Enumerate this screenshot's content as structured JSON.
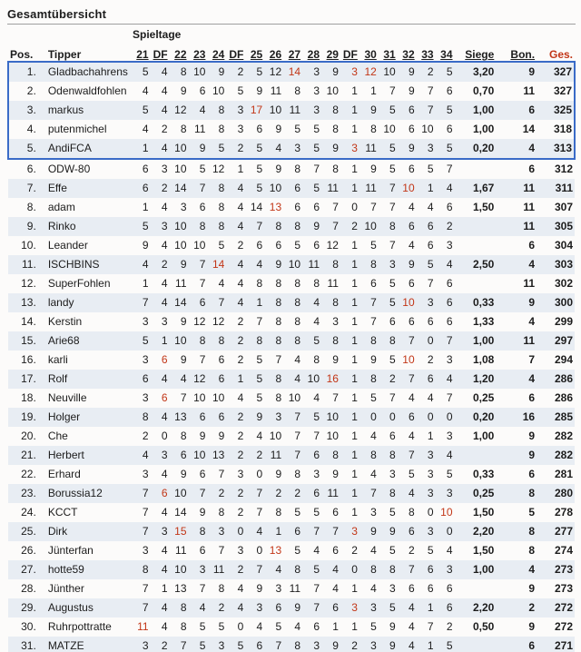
{
  "page": {
    "title": "Gesamtübersicht"
  },
  "colors": {
    "highlight_red": "#c23617",
    "top5_box_blue": "#3a6bc7",
    "row_stripe": "#e8edf3",
    "rule_gray": "#9f9f9f"
  },
  "table": {
    "group_label": "Spieltage",
    "highlight_rows": 5,
    "columns": {
      "pos": "Pos.",
      "tipper": "Tipper",
      "days": [
        "21",
        "DF",
        "22",
        "23",
        "24",
        "DF",
        "25",
        "26",
        "27",
        "28",
        "29",
        "DF",
        "30",
        "31",
        "32",
        "33",
        "34"
      ],
      "siege": "Siege",
      "bon": "Bon.",
      "ges": "Ges."
    },
    "rows": [
      {
        "pos": "1.",
        "name": "Gladbachahrens",
        "values": [
          5,
          4,
          8,
          10,
          9,
          2,
          5,
          12,
          14,
          3,
          9,
          3,
          12,
          10,
          9,
          2,
          5
        ],
        "red": [
          8,
          11,
          12
        ],
        "siege": "3,20",
        "bon": "9",
        "ges": "327"
      },
      {
        "pos": "2.",
        "name": "Odenwaldfohlen",
        "values": [
          4,
          4,
          9,
          6,
          10,
          5,
          9,
          11,
          8,
          3,
          10,
          1,
          1,
          7,
          9,
          7,
          6
        ],
        "red": [],
        "siege": "0,70",
        "bon": "11",
        "ges": "327"
      },
      {
        "pos": "3.",
        "name": "markus",
        "values": [
          5,
          4,
          12,
          4,
          8,
          3,
          17,
          10,
          11,
          3,
          8,
          1,
          9,
          5,
          6,
          7,
          5
        ],
        "red": [
          6
        ],
        "siege": "1,00",
        "bon": "6",
        "ges": "325"
      },
      {
        "pos": "4.",
        "name": "putenmichel",
        "values": [
          4,
          2,
          8,
          11,
          8,
          3,
          6,
          9,
          5,
          5,
          8,
          1,
          8,
          10,
          6,
          10,
          6
        ],
        "red": [],
        "siege": "1,00",
        "bon": "14",
        "ges": "318"
      },
      {
        "pos": "5.",
        "name": "AndiFCA",
        "values": [
          1,
          4,
          10,
          9,
          5,
          2,
          5,
          4,
          3,
          5,
          9,
          3,
          11,
          5,
          9,
          3,
          5
        ],
        "red": [
          11
        ],
        "siege": "0,20",
        "bon": "4",
        "ges": "313"
      },
      {
        "pos": "6.",
        "name": "ODW-80",
        "values": [
          6,
          3,
          10,
          5,
          12,
          1,
          5,
          9,
          8,
          7,
          8,
          1,
          9,
          5,
          6,
          5,
          7
        ],
        "red": [],
        "siege": "",
        "bon": "6",
        "ges": "312"
      },
      {
        "pos": "7.",
        "name": "Effe",
        "values": [
          6,
          2,
          14,
          7,
          8,
          4,
          5,
          10,
          6,
          5,
          11,
          1,
          11,
          7,
          10,
          1,
          4
        ],
        "red": [
          14
        ],
        "siege": "1,67",
        "bon": "11",
        "ges": "311"
      },
      {
        "pos": "8.",
        "name": "adam",
        "values": [
          1,
          4,
          3,
          6,
          8,
          4,
          14,
          13,
          6,
          6,
          7,
          0,
          7,
          7,
          4,
          4,
          6
        ],
        "red": [
          7
        ],
        "siege": "1,50",
        "bon": "11",
        "ges": "307"
      },
      {
        "pos": "9.",
        "name": "Rinko",
        "values": [
          5,
          3,
          10,
          8,
          8,
          4,
          7,
          8,
          8,
          9,
          7,
          2,
          10,
          8,
          6,
          6,
          2
        ],
        "red": [],
        "siege": "",
        "bon": "11",
        "ges": "305"
      },
      {
        "pos": "10.",
        "name": "Leander",
        "values": [
          9,
          4,
          10,
          10,
          5,
          2,
          6,
          6,
          5,
          6,
          12,
          1,
          5,
          7,
          4,
          6,
          3
        ],
        "red": [],
        "siege": "",
        "bon": "6",
        "ges": "304"
      },
      {
        "pos": "11.",
        "name": "ISCHBINS",
        "values": [
          4,
          2,
          9,
          7,
          14,
          4,
          4,
          9,
          10,
          11,
          8,
          1,
          8,
          3,
          9,
          5,
          4
        ],
        "red": [
          4
        ],
        "siege": "2,50",
        "bon": "4",
        "ges": "303"
      },
      {
        "pos": "12.",
        "name": "SuperFohlen",
        "values": [
          1,
          4,
          11,
          7,
          4,
          4,
          8,
          8,
          8,
          8,
          11,
          1,
          6,
          5,
          6,
          7,
          6
        ],
        "red": [],
        "siege": "",
        "bon": "11",
        "ges": "302"
      },
      {
        "pos": "13.",
        "name": "landy",
        "values": [
          7,
          4,
          14,
          6,
          7,
          4,
          1,
          8,
          8,
          4,
          8,
          1,
          7,
          5,
          10,
          3,
          6
        ],
        "red": [
          14
        ],
        "siege": "0,33",
        "bon": "9",
        "ges": "300"
      },
      {
        "pos": "14.",
        "name": "Kerstin",
        "values": [
          3,
          3,
          9,
          12,
          12,
          2,
          7,
          8,
          8,
          4,
          3,
          1,
          7,
          6,
          6,
          6,
          6
        ],
        "red": [],
        "siege": "1,33",
        "bon": "4",
        "ges": "299"
      },
      {
        "pos": "15.",
        "name": "Arie68",
        "values": [
          5,
          1,
          10,
          8,
          8,
          2,
          8,
          8,
          8,
          5,
          8,
          1,
          8,
          8,
          7,
          0,
          7
        ],
        "red": [],
        "siege": "1,00",
        "bon": "11",
        "ges": "297"
      },
      {
        "pos": "16.",
        "name": "karli",
        "values": [
          3,
          6,
          9,
          7,
          6,
          2,
          5,
          7,
          4,
          8,
          9,
          1,
          9,
          5,
          10,
          2,
          3
        ],
        "red": [
          1,
          14
        ],
        "siege": "1,08",
        "bon": "7",
        "ges": "294"
      },
      {
        "pos": "17.",
        "name": "Rolf",
        "values": [
          6,
          4,
          4,
          12,
          6,
          1,
          5,
          8,
          4,
          10,
          16,
          1,
          8,
          2,
          7,
          6,
          4
        ],
        "red": [
          10
        ],
        "siege": "1,20",
        "bon": "4",
        "ges": "286"
      },
      {
        "pos": "18.",
        "name": "Neuville",
        "values": [
          3,
          6,
          7,
          10,
          10,
          4,
          5,
          8,
          10,
          4,
          7,
          1,
          5,
          7,
          4,
          4,
          7
        ],
        "red": [
          1
        ],
        "siege": "0,25",
        "bon": "6",
        "ges": "286"
      },
      {
        "pos": "19.",
        "name": "Holger",
        "values": [
          8,
          4,
          13,
          6,
          6,
          2,
          9,
          3,
          7,
          5,
          10,
          1,
          0,
          0,
          6,
          0,
          0
        ],
        "red": [],
        "siege": "0,20",
        "bon": "16",
        "ges": "285"
      },
      {
        "pos": "20.",
        "name": "Che",
        "values": [
          2,
          0,
          8,
          9,
          9,
          2,
          4,
          10,
          7,
          7,
          10,
          1,
          4,
          6,
          4,
          1,
          3
        ],
        "red": [],
        "siege": "1,00",
        "bon": "9",
        "ges": "282"
      },
      {
        "pos": "21.",
        "name": "Herbert",
        "values": [
          4,
          3,
          6,
          10,
          13,
          2,
          2,
          11,
          7,
          6,
          8,
          1,
          8,
          8,
          7,
          3,
          4
        ],
        "red": [],
        "siege": "",
        "bon": "9",
        "ges": "282"
      },
      {
        "pos": "22.",
        "name": "Erhard",
        "values": [
          3,
          4,
          9,
          6,
          7,
          3,
          0,
          9,
          8,
          3,
          9,
          1,
          4,
          3,
          5,
          3,
          5
        ],
        "red": [],
        "siege": "0,33",
        "bon": "6",
        "ges": "281"
      },
      {
        "pos": "23.",
        "name": "Borussia12",
        "values": [
          7,
          6,
          10,
          7,
          2,
          2,
          7,
          2,
          2,
          6,
          11,
          1,
          7,
          8,
          4,
          3,
          3
        ],
        "red": [
          1
        ],
        "siege": "0,25",
        "bon": "8",
        "ges": "280"
      },
      {
        "pos": "24.",
        "name": "KCCT",
        "values": [
          7,
          4,
          14,
          9,
          8,
          2,
          7,
          8,
          5,
          5,
          6,
          1,
          3,
          5,
          8,
          0,
          10
        ],
        "red": [
          16
        ],
        "siege": "1,50",
        "bon": "5",
        "ges": "278"
      },
      {
        "pos": "25.",
        "name": "Dirk",
        "values": [
          7,
          3,
          15,
          8,
          3,
          0,
          4,
          1,
          6,
          7,
          7,
          3,
          9,
          9,
          6,
          3,
          0
        ],
        "red": [
          2,
          11
        ],
        "siege": "2,20",
        "bon": "8",
        "ges": "277"
      },
      {
        "pos": "26.",
        "name": "Jünterfan",
        "values": [
          3,
          4,
          11,
          6,
          7,
          3,
          0,
          13,
          5,
          4,
          6,
          2,
          4,
          5,
          2,
          5,
          4
        ],
        "red": [
          7
        ],
        "siege": "1,50",
        "bon": "8",
        "ges": "274"
      },
      {
        "pos": "27.",
        "name": "hotte59",
        "values": [
          8,
          4,
          10,
          3,
          11,
          2,
          7,
          4,
          8,
          5,
          4,
          0,
          8,
          8,
          7,
          6,
          3
        ],
        "red": [],
        "siege": "1,00",
        "bon": "4",
        "ges": "273"
      },
      {
        "pos": "28.",
        "name": "Jünther",
        "values": [
          7,
          1,
          13,
          7,
          8,
          4,
          9,
          3,
          11,
          7,
          4,
          1,
          4,
          3,
          6,
          6,
          6
        ],
        "red": [],
        "siege": "",
        "bon": "9",
        "ges": "273"
      },
      {
        "pos": "29.",
        "name": "Augustus",
        "values": [
          7,
          4,
          8,
          4,
          2,
          4,
          3,
          6,
          9,
          7,
          6,
          3,
          3,
          5,
          4,
          1,
          6
        ],
        "red": [
          11
        ],
        "siege": "2,20",
        "bon": "2",
        "ges": "272"
      },
      {
        "pos": "30.",
        "name": "Ruhrpottratte",
        "values": [
          11,
          4,
          8,
          5,
          5,
          0,
          4,
          5,
          4,
          6,
          1,
          1,
          5,
          9,
          4,
          7,
          2
        ],
        "red": [
          0
        ],
        "siege": "0,50",
        "bon": "9",
        "ges": "272"
      },
      {
        "pos": "31.",
        "name": "MATZE",
        "values": [
          3,
          2,
          7,
          5,
          3,
          5,
          6,
          7,
          8,
          3,
          9,
          2,
          3,
          9,
          4,
          1,
          5
        ],
        "red": [],
        "siege": "",
        "bon": "6",
        "ges": "271"
      }
    ]
  }
}
